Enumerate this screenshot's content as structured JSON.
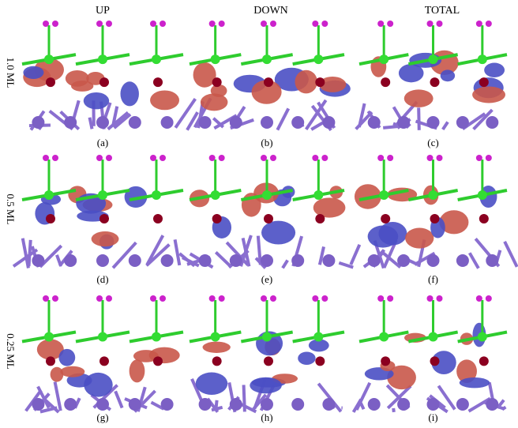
{
  "column_headers": [
    "UP",
    "DOWN",
    "TOTAL"
  ],
  "row_labels": [
    "1.0 ML",
    "0.5 ML",
    "0.25 ML"
  ],
  "panel_labels": [
    "(a)",
    "(b)",
    "(c)",
    "(d)",
    "(e)",
    "(f)",
    "(g)",
    "(h)",
    "(i)"
  ]
}
